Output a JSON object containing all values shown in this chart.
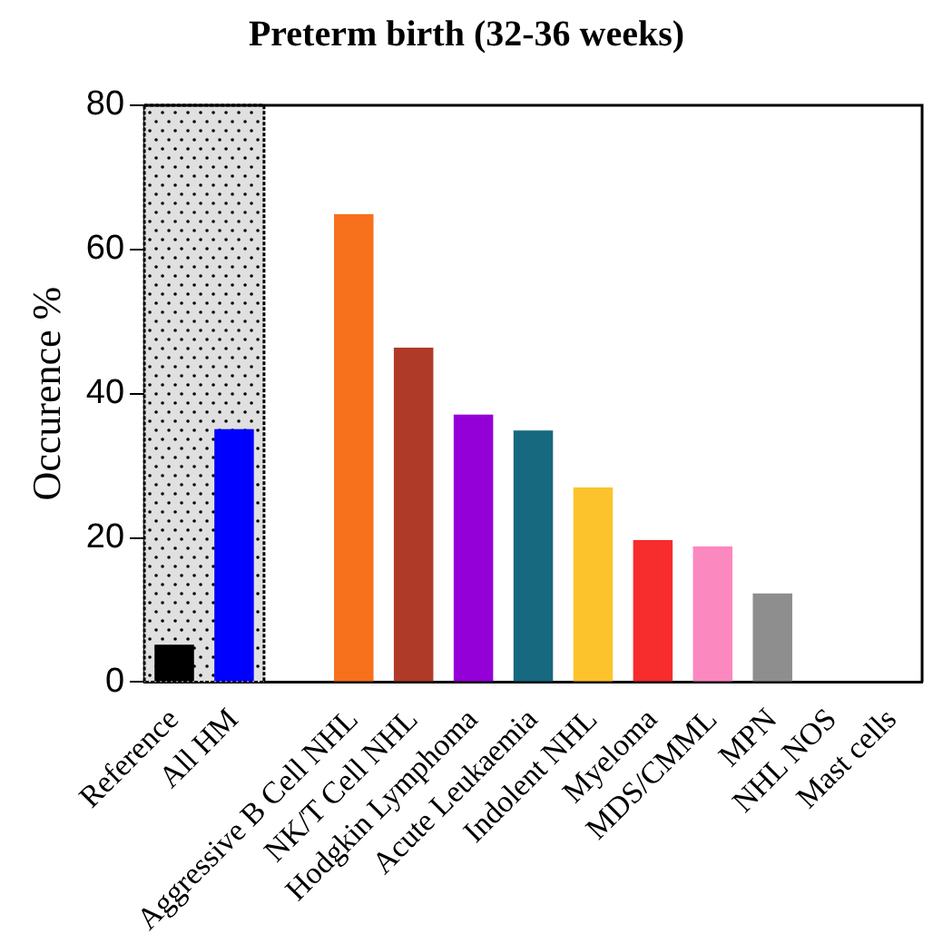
{
  "chart_data": {
    "type": "bar",
    "title": "Preterm birth (32-36 weeks)",
    "ylabel": "Occurence %",
    "categories": [
      "Reference",
      "All HM",
      null,
      "Aggressive B Cell NHL",
      "NK/T Cell NHL",
      "Hodgkin Lymphoma",
      "Acute Leukaemia",
      "Indolent NHL",
      "Myeloma",
      "MDS/CMML",
      "MPN",
      "NHL NOS",
      "Mast cells"
    ],
    "values": [
      5.2,
      35.1,
      null,
      64.9,
      46.4,
      37.1,
      34.9,
      27.0,
      19.7,
      18.8,
      12.3,
      0,
      0
    ],
    "colors": [
      "#000000",
      "#0000ff",
      "#ffffff",
      "#f7701c",
      "#b03a28",
      "#9400d8",
      "#17697f",
      "#fcc32c",
      "#f72c2c",
      "#fc88c0",
      "#8e8e8e",
      "#8e8e8e",
      "#8e8e8e"
    ],
    "ylim": [
      0,
      80
    ],
    "yticks": [
      0,
      20,
      40,
      60,
      80
    ],
    "grid": false,
    "legend": false,
    "bands": [
      {
        "axis": "x",
        "from": "Reference",
        "to": "All HM",
        "label": null,
        "color": "#e0e0e0"
      }
    ]
  }
}
